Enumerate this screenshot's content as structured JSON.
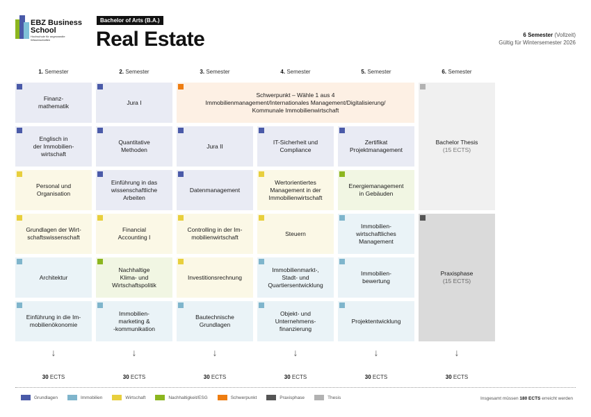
{
  "header": {
    "logo_name_1": "EBZ Business",
    "logo_name_2": "School",
    "logo_sub": "Hochschule für angewandte Wissenschaften",
    "degree": "Bachelor of Arts (B.A.)",
    "title": "Real Estate",
    "semesters_bold": "6 Semester",
    "semesters_note": " (Vollzeit)",
    "validity": "Gültig für Wintersemester 2026"
  },
  "colors": {
    "grundlagen": "#4a5aa8",
    "immobilien": "#7fb5cc",
    "wirtschaft": "#e8cf3d",
    "nachhaltigkeit": "#8cb61f",
    "schwerpunkt": "#ee7d11",
    "praxisphase": "#555555",
    "thesis": "#b2b2b2"
  },
  "semesters": [
    {
      "num": "1.",
      "label": " Semester",
      "ects_num": "30",
      "ects_unit": " ECTS",
      "arrow": "↓"
    },
    {
      "num": "2.",
      "label": " Semester",
      "ects_num": "30",
      "ects_unit": " ECTS",
      "arrow": "↓"
    },
    {
      "num": "3.",
      "label": " Semester",
      "ects_num": "30",
      "ects_unit": " ECTS",
      "arrow": "↓"
    },
    {
      "num": "4.",
      "label": " Semester",
      "ects_num": "30",
      "ects_unit": " ECTS",
      "arrow": "↓"
    },
    {
      "num": "5.",
      "label": " Semester",
      "ects_num": "30",
      "ects_unit": " ECTS",
      "arrow": "↓"
    },
    {
      "num": "6.",
      "label": " Semester",
      "ects_num": "30",
      "ects_unit": " ECTS",
      "arrow": "↓"
    }
  ],
  "modules": {
    "s1r1": "Finanz-\nmathematik",
    "s1r2": "Englisch in\nder Immobilien-\nwirtschaft",
    "s1r3": "Personal und\nOrganisation",
    "s1r4": "Grundlagen der Wirt-\nschaftswissenschaft",
    "s1r5": "Architektur",
    "s1r6": "Einführung in die Im-\nmobilienökonomie",
    "s2r1": "Jura I",
    "s2r2": "Quantitative\nMethoden",
    "s2r3": "Einführung in das\nwissenschaftliche\nArbeiten",
    "s2r4": "Financial\nAccounting I",
    "s2r5": "Nachhaltige\nKlima- und\nWirtschaftspolitik",
    "s2r6": "Immobilien-\nmarketing &\n-kommunikation",
    "schwerpunkt": "Schwerpunkt  – Wähle 1 aus 4\nImmobilienmanagement/Internationales Management/Digitalisierung/\nKommunale Immobilienwirtschaft",
    "s3r2": "Jura II",
    "s3r3": "Datenmanagement",
    "s3r4": "Controlling in der Im-\nmobilienwirtschaft",
    "s3r5": "Investitionsrechnung",
    "s3r6": "Bautechnische\nGrundlagen",
    "s4r2": "IT-Sicherheit und\nCompliance",
    "s4r3": "Wertorientiertes\nManagement in der\nImmobilienwirtschaft",
    "s4r4": "Steuern",
    "s4r5": "Immobilienmarkt-,\nStadt- und\nQuartiersentwicklung",
    "s4r6": "Objekt- und\nUnternehmens-\nfinanzierung",
    "s5r2": "Zertifikat\nProjektmanagement",
    "s5r3": "Energiemanagement\nin Gebäuden",
    "s5r4": "Immobilien-\nwirtschaftliches\nManagement",
    "s5r5": "Immobilien-\nbewertung",
    "s5r6": "Projektentwicklung",
    "thesis_title": "Bachelor Thesis",
    "thesis_ects": "(15 ECTS)",
    "praxis_title": "Praxisphase",
    "praxis_ects": "(15 ECTS)"
  },
  "legend": [
    {
      "label": "Grundlagen",
      "color": "#4a5aa8"
    },
    {
      "label": "Immobilien",
      "color": "#7fb5cc"
    },
    {
      "label": "Wirtschaft",
      "color": "#e8cf3d"
    },
    {
      "label": "Nachhaltigkeit/ESG",
      "color": "#8cb61f"
    },
    {
      "label": "Schwerpunkt",
      "color": "#ee7d11"
    },
    {
      "label": "Praxisphase",
      "color": "#555555"
    },
    {
      "label": "Thesis",
      "color": "#b2b2b2"
    }
  ],
  "footer": {
    "total_pre": "Insgesamt müssen ",
    "total_bold": "180 ECTS",
    "total_post": " erreicht werden"
  }
}
